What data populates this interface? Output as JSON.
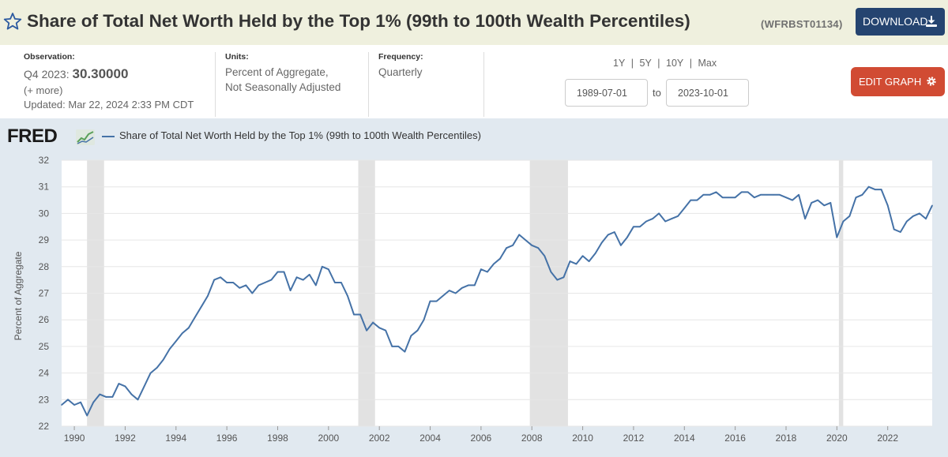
{
  "header": {
    "title": "Share of Total Net Worth Held by the Top 1% (99th to 100th Wealth Percentiles)",
    "series_id": "(WFRBST01134)",
    "download_label": "DOWNLOAD"
  },
  "meta": {
    "observation_label": "Observation:",
    "observation_period": "Q4 2023:",
    "observation_value": "30.30000",
    "more_label": "(+ more)",
    "updated": "Updated: Mar 22, 2024 2:33 PM CDT",
    "units_label": "Units:",
    "units_line1": "Percent of Aggregate,",
    "units_line2": "Not Seasonally Adjusted",
    "frequency_label": "Frequency:",
    "frequency_value": "Quarterly"
  },
  "range": {
    "links": [
      "1Y",
      "5Y",
      "10Y",
      "Max"
    ],
    "separator": "|",
    "start": "1989-07-01",
    "end": "2023-10-01",
    "to_label": "to"
  },
  "edit_graph_label": "EDIT GRAPH",
  "logo_text": "FRED",
  "colors": {
    "series": "#4572a7",
    "recession": "#e2e2e2",
    "plot_bg": "#ffffff",
    "chart_bg": "#e1e9f0",
    "download": "#254470",
    "edit": "#d14b33"
  },
  "chart_data": {
    "type": "line",
    "title": "Share of Total Net Worth Held by the Top 1% (99th to 100th Wealth Percentiles)",
    "xlabel": "",
    "ylabel": "Percent of Aggregate",
    "ylim": [
      22,
      32
    ],
    "xlim": [
      1989.5,
      2023.75
    ],
    "yticks": [
      22,
      23,
      24,
      25,
      26,
      27,
      28,
      29,
      30,
      31,
      32
    ],
    "xticks": [
      1990,
      1992,
      1994,
      1996,
      1998,
      2000,
      2002,
      2004,
      2006,
      2008,
      2010,
      2012,
      2014,
      2016,
      2018,
      2020,
      2022
    ],
    "grid": true,
    "legend": "top-left",
    "recessions": [
      [
        1990.5,
        1991.17
      ],
      [
        2001.17,
        2001.83
      ],
      [
        2007.92,
        2009.42
      ],
      [
        2020.08,
        2020.25
      ]
    ],
    "series": [
      {
        "name": "Share of Total Net Worth Held by the Top 1% (99th to 100th Wealth Percentiles)",
        "start": 1989.5,
        "step": 0.25,
        "values": [
          22.8,
          23.0,
          22.8,
          22.9,
          22.4,
          22.9,
          23.2,
          23.1,
          23.1,
          23.6,
          23.5,
          23.2,
          23.0,
          23.5,
          24.0,
          24.2,
          24.5,
          24.9,
          25.2,
          25.5,
          25.7,
          26.1,
          26.5,
          26.9,
          27.5,
          27.6,
          27.4,
          27.4,
          27.2,
          27.3,
          27.0,
          27.3,
          27.4,
          27.5,
          27.8,
          27.8,
          27.1,
          27.6,
          27.5,
          27.7,
          27.3,
          28.0,
          27.9,
          27.4,
          27.4,
          26.9,
          26.2,
          26.2,
          25.6,
          25.9,
          25.7,
          25.6,
          25.0,
          25.0,
          24.8,
          25.4,
          25.6,
          26.0,
          26.7,
          26.7,
          26.9,
          27.1,
          27.0,
          27.2,
          27.3,
          27.3,
          27.9,
          27.8,
          28.1,
          28.3,
          28.7,
          28.8,
          29.2,
          29.0,
          28.8,
          28.7,
          28.4,
          27.8,
          27.5,
          27.6,
          28.2,
          28.1,
          28.4,
          28.2,
          28.5,
          28.9,
          29.2,
          29.3,
          28.8,
          29.1,
          29.5,
          29.5,
          29.7,
          29.8,
          30.0,
          29.7,
          29.8,
          29.9,
          30.2,
          30.5,
          30.5,
          30.7,
          30.7,
          30.8,
          30.6,
          30.6,
          30.6,
          30.8,
          30.8,
          30.6,
          30.7,
          30.7,
          30.7,
          30.7,
          30.6,
          30.5,
          30.7,
          29.8,
          30.4,
          30.5,
          30.3,
          30.4,
          29.1,
          29.7,
          29.9,
          30.6,
          30.7,
          31.0,
          30.9,
          30.9,
          30.3,
          29.4,
          29.3,
          29.7,
          29.9,
          30.0,
          29.8,
          30.3
        ]
      }
    ]
  }
}
